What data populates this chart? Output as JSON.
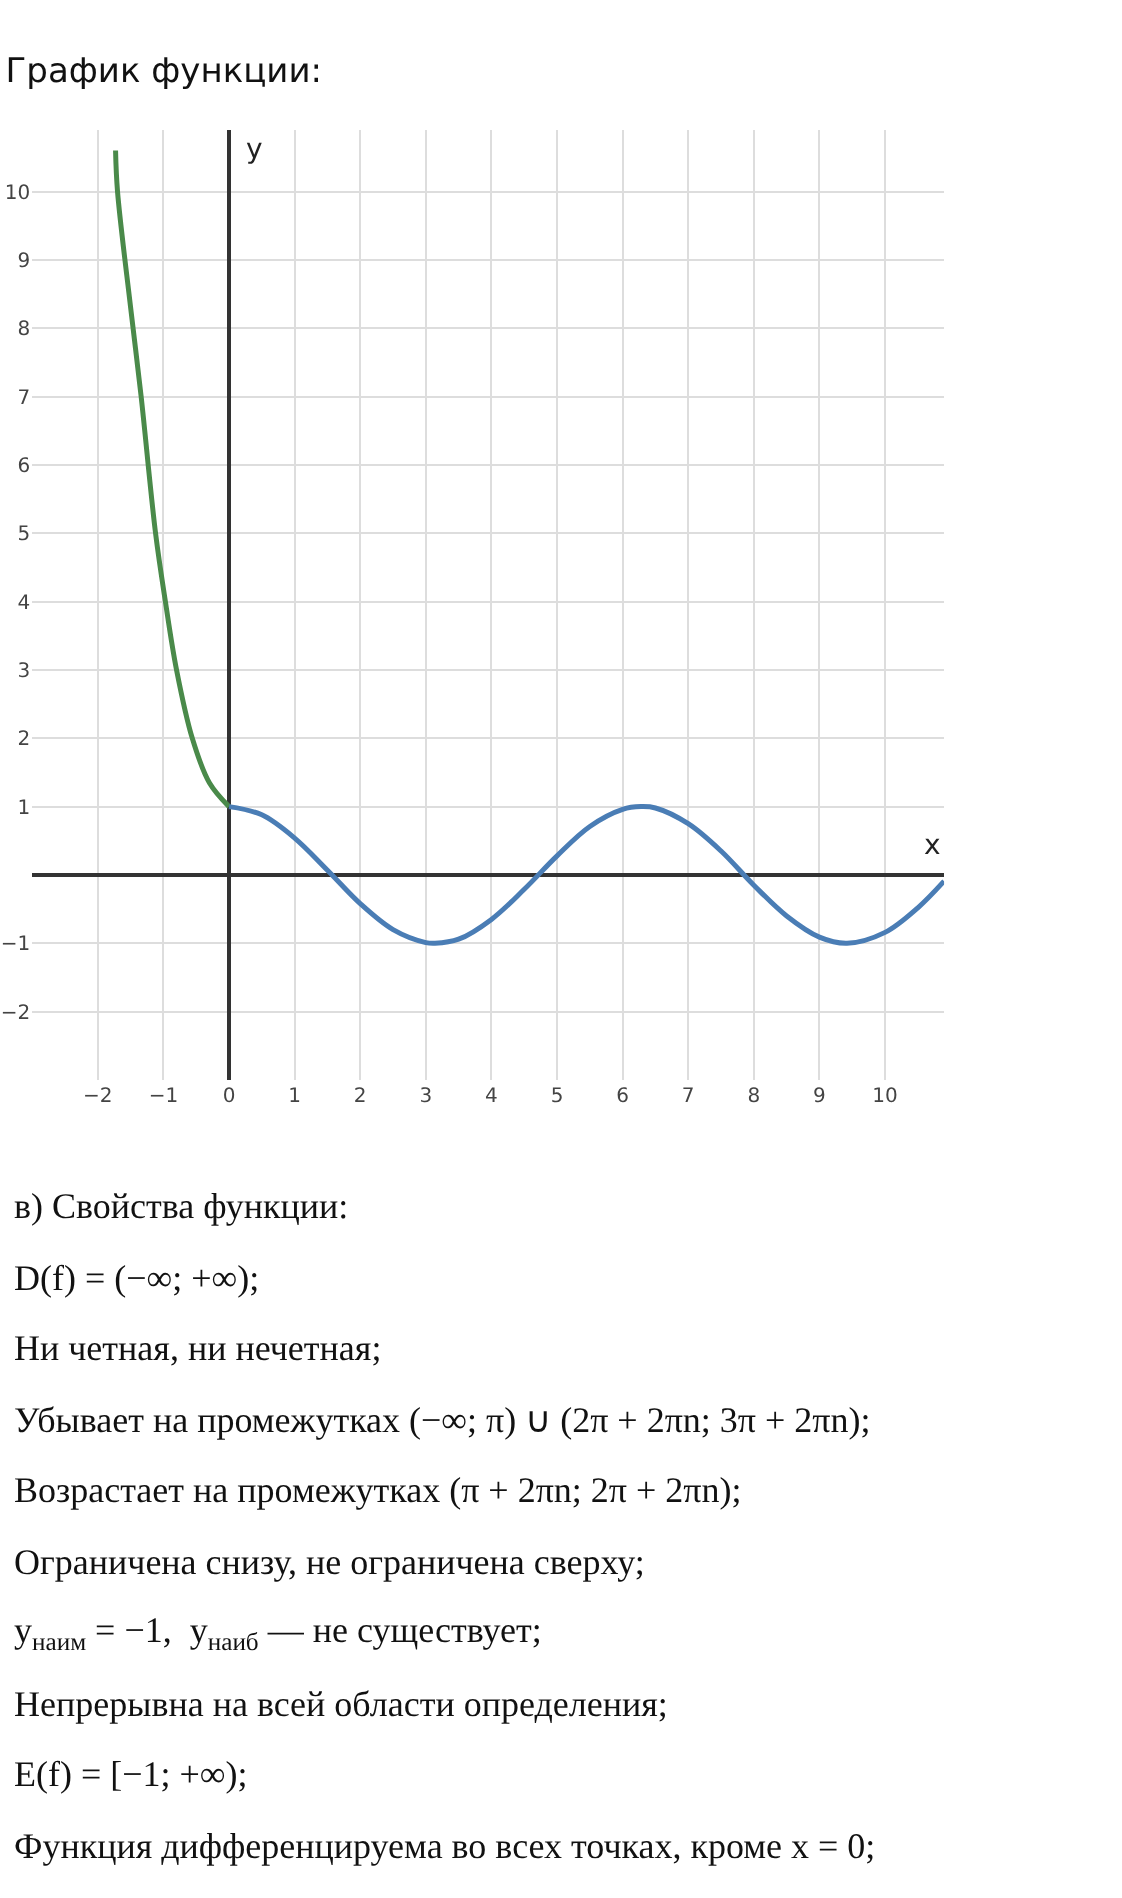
{
  "chart_data": {
    "type": "line",
    "title": "График функции:",
    "xlabel": "x",
    "ylabel": "y",
    "xlim": [
      -3,
      10.9
    ],
    "ylim": [
      -3,
      10.9
    ],
    "xticks": [
      -2,
      -1,
      0,
      1,
      2,
      3,
      4,
      5,
      6,
      7,
      8,
      9,
      10
    ],
    "yticks": [
      -2,
      -1,
      1,
      2,
      3,
      4,
      5,
      6,
      7,
      8,
      9,
      10
    ],
    "grid": true,
    "legend": false,
    "marker": "none",
    "line_style": "solid",
    "series": [
      {
        "color": "#4a8a4a",
        "x": [
          -1.73,
          -1.7,
          -1.5,
          -1.34,
          -1.12,
          -0.97,
          -0.8,
          -0.56,
          -0.3,
          0
        ],
        "values": [
          10.6,
          10,
          8.3,
          7,
          5,
          4,
          3,
          2,
          1.35,
          1
        ]
      },
      {
        "color": "#4a7db5",
        "x": [
          0,
          0.5,
          1,
          1.5,
          2,
          2.5,
          3,
          3.14,
          3.5,
          4,
          4.5,
          5,
          5.5,
          6,
          6.28,
          6.5,
          7,
          7.5,
          8,
          8.5,
          9,
          9.42,
          10,
          10.5,
          10.9
        ],
        "values": [
          1,
          0.88,
          0.54,
          0.07,
          -0.42,
          -0.8,
          -0.99,
          -1,
          -0.94,
          -0.65,
          -0.21,
          0.28,
          0.71,
          0.96,
          1,
          0.98,
          0.75,
          0.35,
          -0.15,
          -0.6,
          -0.91,
          -1,
          -0.84,
          -0.48,
          -0.09
        ]
      }
    ],
    "annotations": [
      "в) Свойства функции:",
      "D(f) = (−∞; +∞);",
      "Ни четная, ни нечетная;",
      "Убывает на промежутках (−∞; π) ∪ (2π + 2πn; 3π + 2πn);",
      "Возрастает на промежутках (π + 2πn; 2π + 2πn);",
      "Ограничена снизу, не ограничена сверху;",
      "y$_{наим}$ = −1,  y$_{наиб}$ — не существует;",
      "Непрерывна на всей области определения;",
      "E(f) = [−1; +∞);",
      "Функция дифференцируема во всех точках, кроме x = 0;"
    ]
  }
}
